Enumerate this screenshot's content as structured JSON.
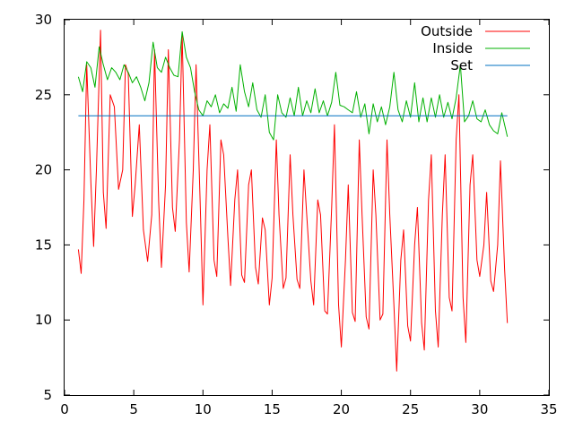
{
  "chart_data": {
    "type": "line",
    "title": "",
    "xlabel": "",
    "ylabel": "",
    "xlim": [
      0,
      35
    ],
    "ylim": [
      5,
      30
    ],
    "x_ticks": [
      0,
      5,
      10,
      15,
      20,
      25,
      30,
      35
    ],
    "y_ticks": [
      5,
      10,
      15,
      20,
      25,
      30
    ],
    "grid": false,
    "legend_position": "top-right",
    "series": [
      {
        "name": "Outside",
        "color": "#ff0000",
        "x": [
          1.0,
          1.2,
          1.4,
          1.6,
          1.9,
          2.1,
          2.3,
          2.6,
          2.8,
          3.0,
          3.3,
          3.6,
          3.9,
          4.2,
          4.4,
          4.6,
          4.9,
          5.1,
          5.4,
          5.7,
          6.0,
          6.3,
          6.5,
          6.8,
          7.0,
          7.3,
          7.5,
          7.8,
          8.0,
          8.3,
          8.5,
          8.8,
          9.0,
          9.3,
          9.5,
          9.8,
          10.0,
          10.3,
          10.5,
          10.8,
          11.0,
          11.3,
          11.5,
          11.8,
          12.0,
          12.3,
          12.5,
          12.8,
          13.0,
          13.3,
          13.5,
          13.8,
          14.0,
          14.3,
          14.5,
          14.8,
          15.0,
          15.3,
          15.5,
          15.8,
          16.0,
          16.3,
          16.5,
          16.8,
          17.0,
          17.3,
          17.5,
          17.8,
          18.0,
          18.3,
          18.5,
          18.8,
          19.0,
          19.3,
          19.5,
          19.8,
          20.0,
          20.3,
          20.5,
          20.8,
          21.0,
          21.3,
          21.5,
          21.8,
          22.0,
          22.3,
          22.5,
          22.8,
          23.0,
          23.3,
          23.5,
          23.8,
          24.0,
          24.3,
          24.5,
          24.8,
          25.0,
          25.3,
          25.5,
          25.8,
          26.0,
          26.3,
          26.5,
          26.8,
          27.0,
          27.3,
          27.5,
          27.8,
          28.0,
          28.3,
          28.5,
          28.8,
          29.0,
          29.3,
          29.5,
          29.8,
          30.0,
          30.3,
          30.5,
          30.8,
          31.0,
          31.3,
          31.5,
          31.8,
          32.0
        ],
        "values": [
          14.7,
          13.1,
          18.0,
          27.0,
          19.2,
          14.9,
          20.0,
          29.3,
          18.5,
          16.1,
          25.0,
          24.2,
          18.7,
          20.0,
          27.0,
          26.4,
          16.9,
          19.0,
          23.0,
          16.0,
          13.9,
          17.0,
          28.0,
          17.9,
          13.5,
          19.0,
          28.0,
          17.5,
          15.9,
          22.0,
          29.0,
          16.5,
          13.2,
          20.0,
          27.0,
          17.8,
          11.0,
          20.0,
          23.0,
          14.0,
          12.9,
          22.0,
          21.0,
          15.5,
          12.3,
          18.0,
          20.0,
          13.0,
          12.5,
          19.0,
          20.0,
          13.5,
          12.4,
          16.8,
          16.0,
          11.0,
          12.8,
          22.0,
          17.0,
          12.1,
          12.8,
          21.0,
          17.0,
          12.7,
          12.1,
          20.0,
          17.0,
          12.6,
          11.0,
          18.0,
          17.0,
          10.6,
          10.4,
          17.5,
          23.0,
          11.0,
          8.2,
          14.0,
          19.0,
          10.5,
          9.9,
          22.0,
          17.0,
          10.2,
          9.4,
          20.0,
          17.0,
          10.0,
          10.4,
          22.0,
          17.0,
          11.0,
          6.6,
          14.0,
          16.0,
          9.6,
          8.6,
          15.0,
          17.5,
          9.8,
          8.0,
          18.0,
          21.0,
          10.6,
          8.2,
          17.0,
          21.0,
          11.5,
          10.6,
          22.0,
          25.0,
          11.5,
          8.5,
          19.0,
          21.0,
          14.0,
          12.9,
          15.0,
          18.5,
          12.6,
          11.9,
          15.0,
          20.6,
          13.4,
          9.8
        ]
      },
      {
        "name": "Inside",
        "color": "#00b000",
        "x": [
          1.0,
          1.3,
          1.6,
          1.9,
          2.2,
          2.5,
          2.8,
          3.1,
          3.4,
          3.7,
          4.0,
          4.3,
          4.6,
          4.9,
          5.2,
          5.5,
          5.8,
          6.1,
          6.4,
          6.7,
          7.0,
          7.3,
          7.6,
          7.9,
          8.2,
          8.5,
          8.8,
          9.1,
          9.4,
          9.7,
          10.0,
          10.3,
          10.6,
          10.9,
          11.2,
          11.5,
          11.8,
          12.1,
          12.4,
          12.7,
          13.0,
          13.3,
          13.6,
          13.9,
          14.2,
          14.5,
          14.8,
          15.1,
          15.4,
          15.7,
          16.0,
          16.3,
          16.6,
          16.9,
          17.2,
          17.5,
          17.8,
          18.1,
          18.4,
          18.7,
          19.0,
          19.3,
          19.6,
          19.9,
          20.2,
          20.5,
          20.8,
          21.1,
          21.4,
          21.7,
          22.0,
          22.3,
          22.6,
          22.9,
          23.2,
          23.5,
          23.8,
          24.1,
          24.4,
          24.7,
          25.0,
          25.3,
          25.6,
          25.9,
          26.2,
          26.5,
          26.8,
          27.1,
          27.4,
          27.7,
          28.0,
          28.3,
          28.6,
          28.9,
          29.2,
          29.5,
          29.8,
          30.1,
          30.4,
          30.7,
          31.0,
          31.3,
          31.6,
          31.9,
          32.0
        ],
        "values": [
          26.2,
          25.2,
          27.2,
          26.8,
          25.5,
          28.2,
          27.0,
          26.0,
          26.8,
          26.5,
          26.0,
          27.0,
          26.5,
          25.8,
          26.2,
          25.5,
          24.6,
          25.8,
          28.5,
          26.8,
          26.5,
          27.5,
          26.8,
          26.3,
          26.2,
          29.2,
          27.5,
          26.8,
          25.2,
          24.0,
          23.6,
          24.6,
          24.2,
          25.0,
          23.8,
          24.4,
          24.1,
          25.5,
          23.9,
          27.0,
          25.2,
          24.2,
          25.8,
          24.0,
          23.5,
          25.0,
          22.5,
          22.0,
          25.0,
          23.8,
          23.5,
          24.8,
          23.6,
          25.5,
          23.6,
          24.6,
          23.8,
          25.4,
          23.8,
          24.6,
          23.6,
          24.5,
          26.5,
          24.3,
          24.2,
          24.0,
          23.8,
          25.2,
          23.5,
          24.4,
          22.4,
          24.4,
          23.2,
          24.2,
          23.0,
          24.2,
          26.5,
          24.0,
          23.2,
          24.6,
          23.5,
          25.8,
          23.2,
          24.8,
          23.2,
          24.8,
          23.5,
          25.0,
          23.5,
          24.5,
          23.4,
          24.8,
          27.0,
          23.2,
          23.6,
          24.6,
          23.4,
          23.2,
          24.0,
          23.0,
          22.6,
          22.4,
          23.8,
          22.6,
          22.2
        ]
      },
      {
        "name": "Set",
        "color": "#0070c0",
        "x": [
          1.0,
          32.0
        ],
        "values": [
          23.6,
          23.6
        ]
      }
    ]
  }
}
